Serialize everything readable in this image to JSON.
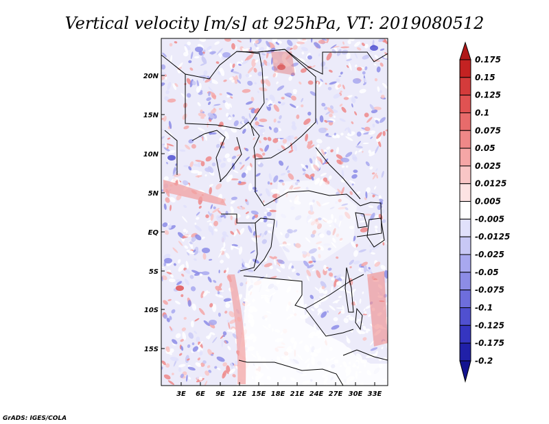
{
  "title": "Vertical velocity [m/s] at 925hPa, VT: 2019080512",
  "footer": "GrADS: IGES/COLA",
  "lat_labels": [
    "20N",
    "15N",
    "10N",
    "5N",
    "EQ",
    "5S",
    "10S",
    "15S"
  ],
  "lon_labels": [
    "3E",
    "6E",
    "9E",
    "12E",
    "15E",
    "18E",
    "21E",
    "24E",
    "27E",
    "30E",
    "33E"
  ],
  "colorbar": {
    "labels": [
      "0.175",
      "0.15",
      "0.125",
      "0.1",
      "0.075",
      "0.05",
      "0.025",
      "0.0125",
      "0.005",
      "-0.005",
      "-0.0125",
      "-0.025",
      "-0.05",
      "-0.075",
      "-0.1",
      "-0.125",
      "-0.175",
      "-0.2"
    ],
    "colors": [
      "#b01818",
      "#c42222",
      "#d43b3b",
      "#e05252",
      "#e86b6b",
      "#ef8888",
      "#f5a6a6",
      "#f9c6c6",
      "#fde3e3",
      "#ffffff",
      "#e1e1fb",
      "#c8c8f5",
      "#a8a8ef",
      "#8c8ce6",
      "#6e6edc",
      "#5050d0",
      "#3535c0",
      "#2020a8",
      "#141490"
    ]
  },
  "colors": {
    "frame": "#000000",
    "borders": "#000000",
    "positive": "#e05252",
    "negative": "#5050d0"
  },
  "map": {
    "lon_range": [
      0,
      35
    ],
    "lat_range": [
      -20,
      25
    ]
  }
}
